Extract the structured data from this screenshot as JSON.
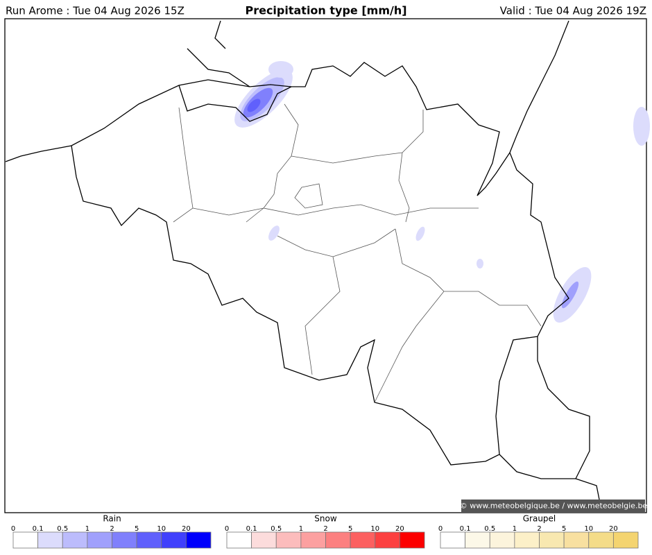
{
  "header": {
    "run": "Run Arome : Tue 04 Aug 2026 15Z",
    "title": "Precipitation type [mm/h]",
    "valid": "Valid : Tue 04 Aug 2026 19Z"
  },
  "credit": "© www.meteobelgique.be / www.meteobelgie.be",
  "legends": [
    {
      "title": "Rain",
      "ticks": [
        "0",
        "0.1",
        "0.5",
        "1",
        "2",
        "5",
        "10",
        "20"
      ],
      "colors": [
        "#ffffff",
        "#dcdcfc",
        "#bcbcfc",
        "#a0a0fc",
        "#8080fc",
        "#6060fc",
        "#4040fc",
        "#0000fc"
      ]
    },
    {
      "title": "Snow",
      "ticks": [
        "0",
        "0.1",
        "0.5",
        "1",
        "2",
        "5",
        "10",
        "20"
      ],
      "colors": [
        "#ffffff",
        "#fcdcdc",
        "#fcbcbc",
        "#fca0a0",
        "#fc8080",
        "#fc6060",
        "#fc4040",
        "#fc0000"
      ]
    },
    {
      "title": "Graupel",
      "ticks": [
        "0",
        "0.1",
        "0.5",
        "1",
        "2",
        "5",
        "10",
        "20"
      ],
      "colors": [
        "#ffffff",
        "#fcf8e8",
        "#fcf4dc",
        "#fcf0c8",
        "#f8e8b0",
        "#f8e0a0",
        "#f4dc88",
        "#f4d470"
      ]
    }
  ]
}
